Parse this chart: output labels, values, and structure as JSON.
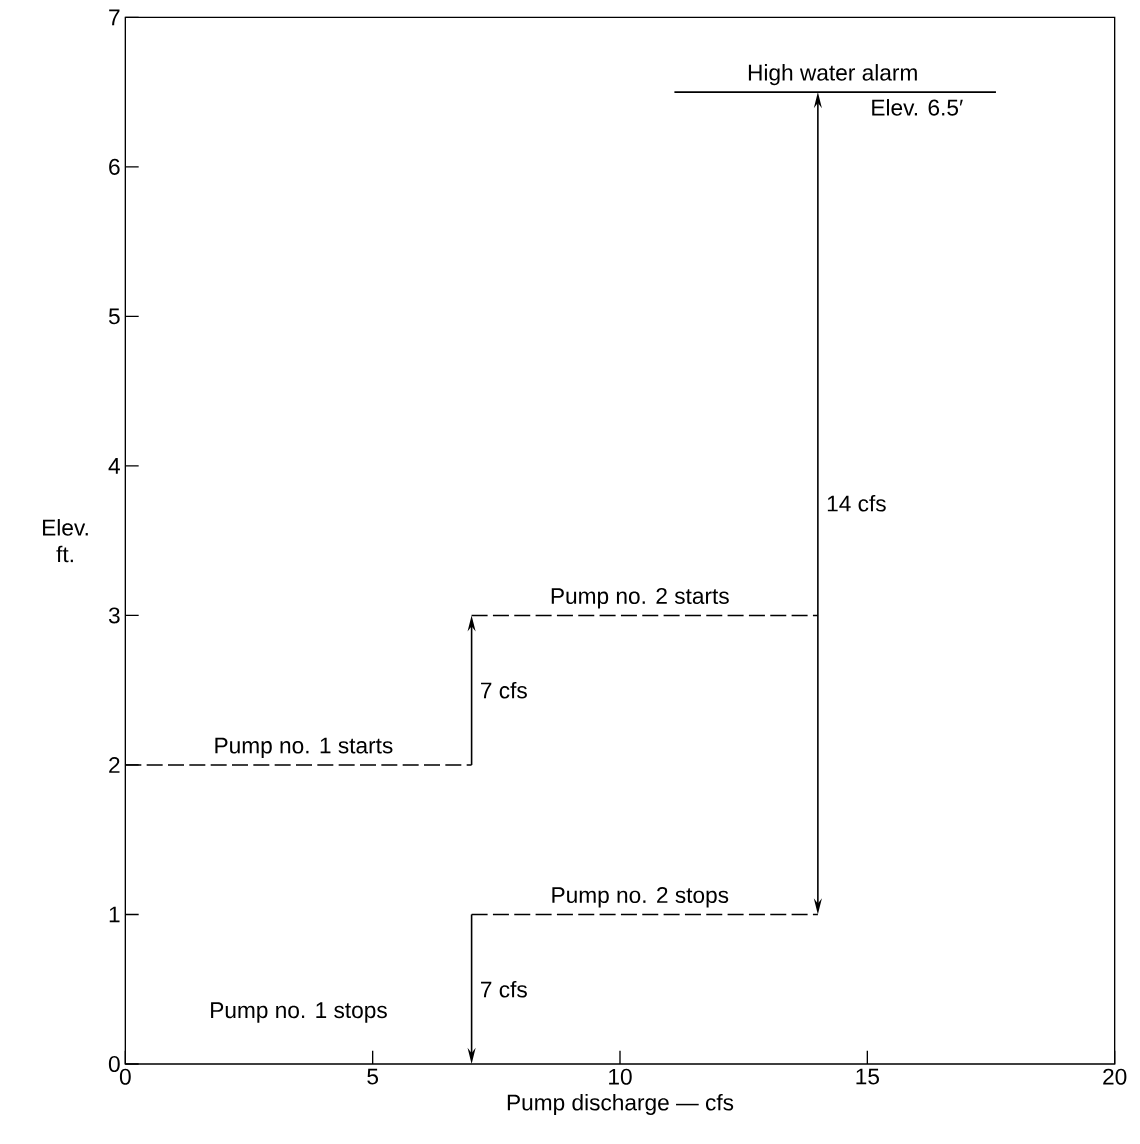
{
  "chart_data": {
    "type": "line",
    "xlabel": "Pump discharge — cfs",
    "ylabel": "Elev. ft.",
    "xlim": [
      0,
      20
    ],
    "ylim": [
      0,
      7
    ],
    "xticks": [
      0,
      5,
      10,
      15,
      20
    ],
    "yticks": [
      0,
      1,
      2,
      3,
      4,
      5,
      6,
      7
    ],
    "grid": false,
    "series": [
      {
        "color": "#000000",
        "line_style": "dashed",
        "x": [
          0,
          7
        ],
        "values": [
          2,
          2
        ]
      },
      {
        "color": "#000000",
        "line_style": "dashed",
        "x": [
          7,
          14
        ],
        "values": [
          3,
          3
        ]
      },
      {
        "color": "#000000",
        "line_style": "dashed",
        "x": [
          7,
          14
        ],
        "values": [
          1,
          1
        ]
      },
      {
        "color": "#000000",
        "line_style": "solid",
        "x": [
          11.1,
          17.6
        ],
        "values": [
          6.5,
          6.5
        ]
      }
    ],
    "annotations": [
      {
        "text": "Pump no. 1 starts",
        "x": 3.6,
        "y": 2
      },
      "Pump no. 1 stops",
      {
        "text": "Pump no. 2 starts",
        "x": 10.4,
        "y": 3
      },
      {
        "text": "Pump no. 2 stops",
        "x": 10.4,
        "y": 1
      },
      "7 cfs",
      "7 cfs",
      "14 cfs",
      {
        "text": "High water alarm",
        "x": 14.3,
        "y": 6.5
      },
      {
        "text": "Elev. 6.5′",
        "x": 16,
        "y": 6.5
      }
    ]
  }
}
